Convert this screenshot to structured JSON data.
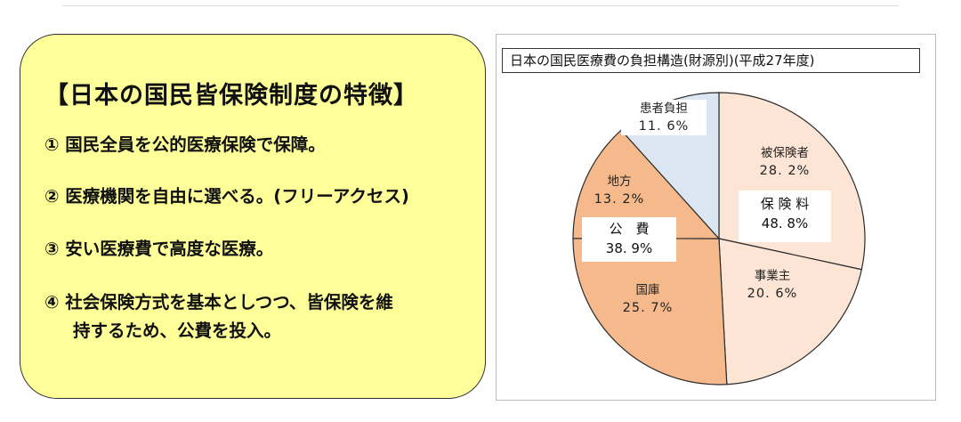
{
  "features": {
    "title": "【日本の国民皆保険制度の特徴】",
    "items": [
      "① 国民全員を公的医療保険で保障。",
      "② 医療機関を自由に選べる。(フリーアクセス)",
      "③ 安い医療費で高度な医療。",
      "④ 社会保険方式を基本としつつ、皆保険を維",
      "持するため、公費を投入。"
    ]
  },
  "chart_data": {
    "type": "pie",
    "title": "日本の国民医療費の負担構造(財源別)(平成27年度)",
    "slices": [
      {
        "name": "被保険者",
        "value": 28.2,
        "label": "28. 2%",
        "color": "#fde5d6"
      },
      {
        "name": "事業主",
        "value": 20.6,
        "label": "20. 6%",
        "color": "#fde5d6"
      },
      {
        "name": "国庫",
        "value": 25.7,
        "label": "25. 7%",
        "color": "#f6b98b"
      },
      {
        "name": "地方",
        "value": 13.2,
        "label": "13. 2%",
        "color": "#f6b98b"
      },
      {
        "name": "患者負担",
        "value": 11.6,
        "label": "11. 6%",
        "color": "#dce6f2"
      }
    ],
    "groups": [
      {
        "name": "保 険 料",
        "value": 48.8,
        "label": "48. 8%"
      },
      {
        "name": "公　費",
        "value": 38.9,
        "label": "38. 9%"
      }
    ]
  }
}
